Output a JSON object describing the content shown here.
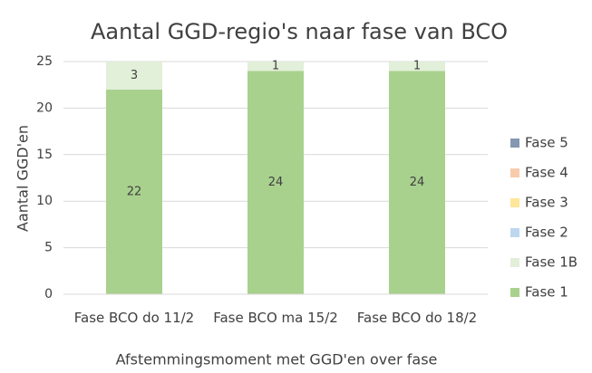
{
  "chart_data": {
    "type": "stacked_bar",
    "title": "Aantal GGD-regio's naar fase van BCO",
    "x_label": "Afstemmingsmoment met GGD'en over fase",
    "y_label": "Aantal GGD'en",
    "categories": [
      "Fase BCO do 11/2",
      "Fase BCO ma 15/2",
      "Fase BCO do 18/2"
    ],
    "series": [
      {
        "name": "Fase 1",
        "color": "#a9d18e",
        "values": [
          22,
          24,
          24
        ]
      },
      {
        "name": "Fase 1B",
        "color": "#e2efd9",
        "values": [
          3,
          1,
          1
        ]
      },
      {
        "name": "Fase 2",
        "color": "#bdd7ee",
        "values": [
          0,
          0,
          0
        ]
      },
      {
        "name": "Fase 3",
        "color": "#ffe699",
        "values": [
          0,
          0,
          0
        ]
      },
      {
        "name": "Fase 4",
        "color": "#f8cbad",
        "values": [
          0,
          0,
          0
        ]
      },
      {
        "name": "Fase 5",
        "color": "#8497b0",
        "values": [
          0,
          0,
          0
        ]
      }
    ],
    "ylim": [
      0,
      25
    ],
    "yticks": [
      0,
      5,
      10,
      15,
      20,
      25
    ],
    "grid": true,
    "legend": "right"
  }
}
